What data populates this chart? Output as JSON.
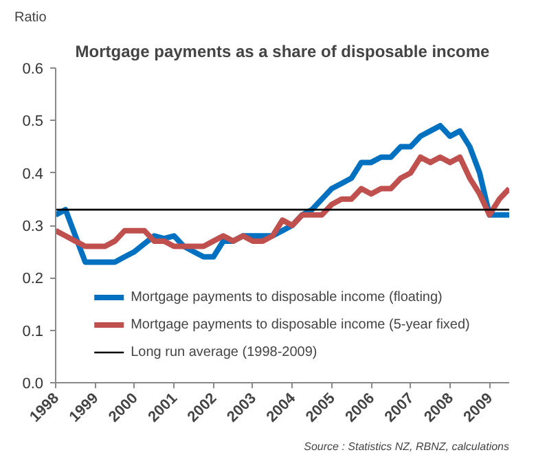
{
  "chart_data": {
    "type": "line",
    "title": "Mortgage payments as a share of disposable income",
    "ylabel": "Ratio",
    "annotations": [
      "Source : Statistics NZ, RBNZ, calculations"
    ],
    "x": [
      1998,
      1998.25,
      1998.5,
      1998.75,
      1999,
      1999.25,
      1999.5,
      1999.75,
      2000,
      2000.25,
      2000.5,
      2000.75,
      2001,
      2001.25,
      2001.5,
      2001.75,
      2002,
      2002.25,
      2002.5,
      2002.75,
      2003,
      2003.25,
      2003.5,
      2003.75,
      2004,
      2004.25,
      2004.5,
      2004.75,
      2005,
      2005.25,
      2005.5,
      2005.75,
      2006,
      2006.25,
      2006.5,
      2006.75,
      2007,
      2007.25,
      2007.5,
      2007.75,
      2008,
      2008.25,
      2008.5,
      2008.75,
      2009,
      2009.25,
      2009.5
    ],
    "series": [
      {
        "name": "Mortgage payments to disposable income (floating)",
        "color": "#0070c0",
        "values": [
          0.32,
          0.33,
          0.28,
          0.23,
          0.23,
          0.23,
          0.23,
          0.24,
          0.25,
          0.265,
          0.28,
          0.275,
          0.28,
          0.26,
          0.25,
          0.24,
          0.24,
          0.27,
          0.27,
          0.28,
          0.28,
          0.28,
          0.28,
          0.29,
          0.3,
          0.32,
          0.33,
          0.35,
          0.37,
          0.38,
          0.39,
          0.42,
          0.42,
          0.43,
          0.43,
          0.45,
          0.45,
          0.47,
          0.48,
          0.49,
          0.47,
          0.48,
          0.45,
          0.4,
          0.32,
          0.32,
          0.32
        ]
      },
      {
        "name": "Mortgage payments to disposable income (5-year fixed)",
        "color": "#c0504d",
        "values": [
          0.29,
          0.28,
          0.27,
          0.26,
          0.26,
          0.26,
          0.27,
          0.29,
          0.29,
          0.29,
          0.27,
          0.27,
          0.26,
          0.26,
          0.26,
          0.26,
          0.27,
          0.28,
          0.27,
          0.28,
          0.27,
          0.27,
          0.28,
          0.31,
          0.3,
          0.32,
          0.32,
          0.32,
          0.34,
          0.35,
          0.35,
          0.37,
          0.36,
          0.37,
          0.37,
          0.39,
          0.4,
          0.43,
          0.42,
          0.43,
          0.42,
          0.43,
          0.39,
          0.36,
          0.32,
          0.35,
          0.37
        ]
      },
      {
        "name": "Long run average (1998-2009)",
        "color": "#000000",
        "x": [
          1998,
          2009.5
        ],
        "values": [
          0.33,
          0.33
        ]
      }
    ],
    "xlim": [
      1998,
      2009.5
    ],
    "xticks": [
      1998,
      1999,
      2000,
      2001,
      2002,
      2003,
      2004,
      2005,
      2006,
      2007,
      2008,
      2009
    ],
    "ylim": [
      0,
      0.6
    ],
    "yticks": [
      {
        "value": 0,
        "label": "0.0"
      },
      {
        "value": 0.1,
        "label": "0.1"
      },
      {
        "value": 0.2,
        "label": "0.2"
      },
      {
        "value": 0.3,
        "label": "0.3"
      },
      {
        "value": 0.4,
        "label": "0.4"
      },
      {
        "value": 0.5,
        "label": "0.5"
      },
      {
        "value": 0.6,
        "label": "0.6"
      }
    ],
    "grid": false,
    "legend": "bottom"
  }
}
